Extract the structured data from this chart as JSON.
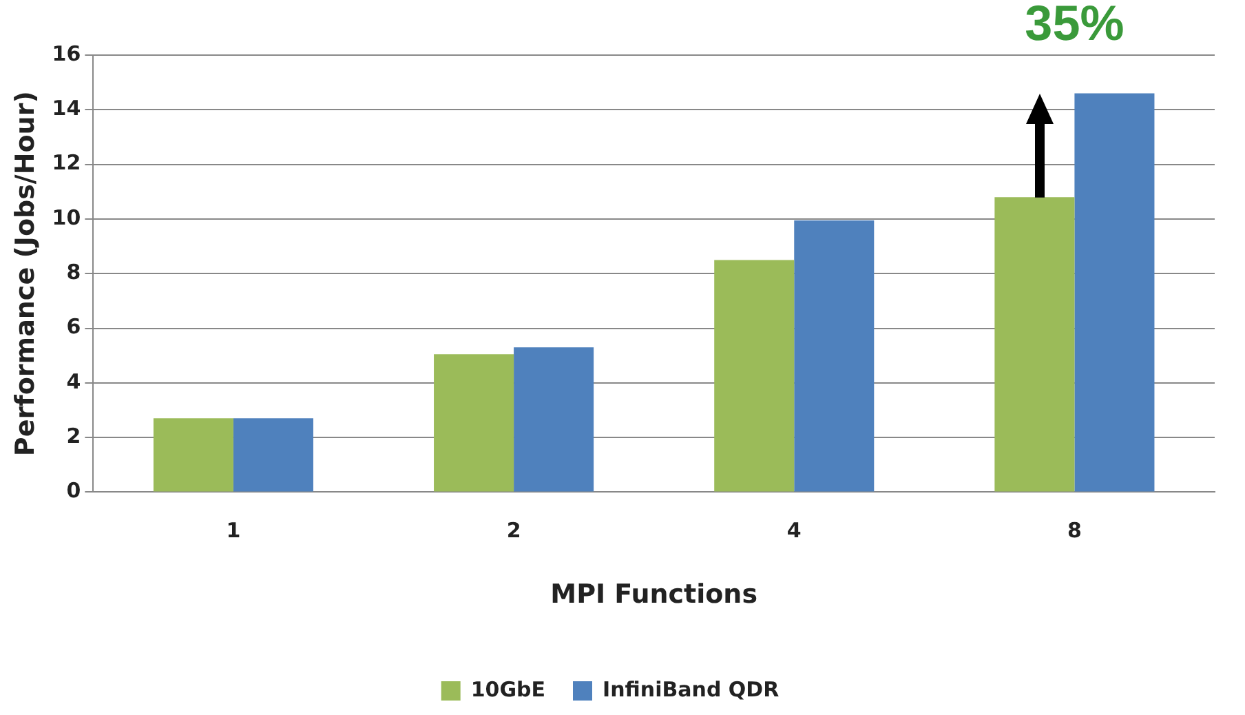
{
  "chart_data": {
    "type": "bar",
    "xlabel": "MPI Functions",
    "ylabel": "Performance (Jobs/Hour)",
    "categories": [
      "1",
      "2",
      "4",
      "8"
    ],
    "series": [
      {
        "name": "10GbE",
        "color": "#9bbb59",
        "values": [
          2.7,
          5.05,
          8.5,
          10.8
        ]
      },
      {
        "name": "InfiniBand QDR",
        "color": "#4f81bd",
        "values": [
          2.7,
          5.3,
          9.95,
          14.6
        ]
      }
    ],
    "ylim": [
      0,
      16
    ],
    "yticks": [
      0,
      2,
      4,
      6,
      8,
      10,
      12,
      14,
      16
    ],
    "grid": "y",
    "legend": "bottom",
    "annotations": [
      {
        "text": "35%",
        "x": "8",
        "y": 14.6
      }
    ]
  }
}
